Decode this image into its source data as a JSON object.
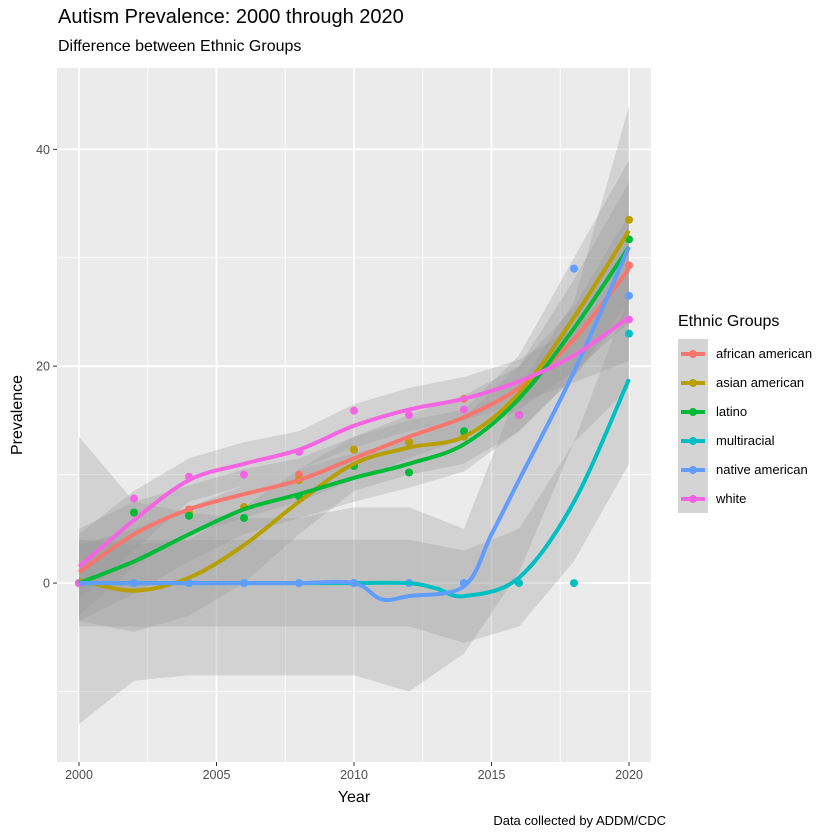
{
  "title": "Autism Prevalence: 2000 through 2020",
  "subtitle": "Difference between Ethnic Groups",
  "caption": "Data collected by ADDM/CDC",
  "chart_data": {
    "type": "scatter",
    "xlabel": "Year",
    "ylabel": "Prevalence",
    "xlim": [
      1999.2,
      2020.8
    ],
    "ylim": [
      -16.5,
      47.5
    ],
    "xticks": [
      2000,
      2005,
      2010,
      2015,
      2020
    ],
    "yticks": [
      0,
      20,
      40
    ],
    "grid": true,
    "legend_title": "Ethnic Groups",
    "legend_position": "right",
    "series": [
      {
        "name": "african american",
        "color": "#F8766D",
        "points": [
          [
            2000,
            0
          ],
          [
            2002,
            6.5
          ],
          [
            2004,
            6.8
          ],
          [
            2006,
            7.0
          ],
          [
            2008,
            10.0
          ],
          [
            2010,
            12.3
          ],
          [
            2012,
            13.0
          ],
          [
            2014,
            17.0
          ],
          [
            2020,
            29.3
          ]
        ],
        "smooth": [
          [
            2000,
            1.0
          ],
          [
            2002,
            4.5
          ],
          [
            2004,
            6.8
          ],
          [
            2006,
            8.2
          ],
          [
            2008,
            9.5
          ],
          [
            2010,
            11.5
          ],
          [
            2012,
            13.5
          ],
          [
            2014,
            15.3
          ],
          [
            2016,
            18.0
          ],
          [
            2018,
            22.5
          ],
          [
            2020,
            29.0
          ]
        ],
        "band": [
          [
            2000,
            -3.0,
            5.0
          ],
          [
            2002,
            1.5,
            7.5
          ],
          [
            2004,
            4.5,
            9.0
          ],
          [
            2006,
            6.0,
            10.5
          ],
          [
            2008,
            7.5,
            11.5
          ],
          [
            2010,
            9.5,
            13.5
          ],
          [
            2012,
            11.5,
            15.5
          ],
          [
            2014,
            13.3,
            17.3
          ],
          [
            2016,
            16.0,
            20.0
          ],
          [
            2018,
            19.5,
            25.5
          ],
          [
            2020,
            24.0,
            34.0
          ]
        ]
      },
      {
        "name": "asian american",
        "color": "#B79F00",
        "points": [
          [
            2000,
            0
          ],
          [
            2002,
            6.5
          ],
          [
            2004,
            6.5
          ],
          [
            2006,
            7.0
          ],
          [
            2008,
            9.5
          ],
          [
            2010,
            12.3
          ],
          [
            2012,
            13.0
          ],
          [
            2014,
            13.5
          ],
          [
            2016,
            15.5
          ],
          [
            2020,
            33.5
          ]
        ],
        "smooth": [
          [
            2000,
            0.3
          ],
          [
            2002,
            -0.7
          ],
          [
            2004,
            0.5
          ],
          [
            2006,
            3.5
          ],
          [
            2008,
            7.5
          ],
          [
            2010,
            11.0
          ],
          [
            2012,
            12.5
          ],
          [
            2014,
            13.5
          ],
          [
            2016,
            17.5
          ],
          [
            2018,
            24.5
          ],
          [
            2020,
            32.5
          ]
        ],
        "band": [
          [
            2000,
            -3.5,
            4.0
          ],
          [
            2002,
            -4.5,
            3.5
          ],
          [
            2004,
            -3.0,
            4.0
          ],
          [
            2006,
            0.0,
            7.0
          ],
          [
            2008,
            4.5,
            10.5
          ],
          [
            2010,
            8.5,
            13.5
          ],
          [
            2012,
            10.0,
            15.0
          ],
          [
            2014,
            11.0,
            16.0
          ],
          [
            2016,
            14.0,
            21.0
          ],
          [
            2018,
            19.0,
            30.0
          ],
          [
            2020,
            26.0,
            39.0
          ]
        ]
      },
      {
        "name": "latino",
        "color": "#00BA38",
        "points": [
          [
            2000,
            0
          ],
          [
            2002,
            6.5
          ],
          [
            2004,
            6.2
          ],
          [
            2006,
            6.0
          ],
          [
            2008,
            8.0
          ],
          [
            2010,
            10.8
          ],
          [
            2012,
            10.2
          ],
          [
            2014,
            14.0
          ],
          [
            2016,
            15.5
          ],
          [
            2020,
            31.7
          ]
        ],
        "smooth": [
          [
            2000,
            0.0
          ],
          [
            2002,
            2.0
          ],
          [
            2004,
            4.5
          ],
          [
            2006,
            6.8
          ],
          [
            2008,
            8.2
          ],
          [
            2010,
            9.7
          ],
          [
            2012,
            11.0
          ],
          [
            2014,
            12.8
          ],
          [
            2016,
            17.0
          ],
          [
            2018,
            23.5
          ],
          [
            2020,
            31.0
          ]
        ],
        "band": [
          [
            2000,
            -3.5,
            3.5
          ],
          [
            2002,
            -1.0,
            5.0
          ],
          [
            2004,
            2.0,
            7.0
          ],
          [
            2006,
            4.5,
            9.0
          ],
          [
            2008,
            6.0,
            10.5
          ],
          [
            2010,
            7.5,
            12.0
          ],
          [
            2012,
            8.8,
            13.2
          ],
          [
            2014,
            10.3,
            15.3
          ],
          [
            2016,
            14.0,
            20.0
          ],
          [
            2018,
            19.0,
            28.0
          ],
          [
            2020,
            25.0,
            37.0
          ]
        ]
      },
      {
        "name": "multiracial",
        "color": "#00BFC4",
        "points": [
          [
            2000,
            0
          ],
          [
            2002,
            0
          ],
          [
            2004,
            0
          ],
          [
            2006,
            0
          ],
          [
            2008,
            0
          ],
          [
            2010,
            0
          ],
          [
            2012,
            0
          ],
          [
            2014,
            0
          ],
          [
            2016,
            0
          ],
          [
            2018,
            0
          ],
          [
            2020,
            23.0
          ]
        ],
        "smooth": [
          [
            2000,
            0.0
          ],
          [
            2002,
            0.0
          ],
          [
            2004,
            0.0
          ],
          [
            2006,
            0.0
          ],
          [
            2008,
            0.0
          ],
          [
            2010,
            0.0
          ],
          [
            2012,
            0.0
          ],
          [
            2013,
            -0.5
          ],
          [
            2014,
            -1.2
          ],
          [
            2016,
            0.5
          ],
          [
            2018,
            7.5
          ],
          [
            2020,
            18.8
          ]
        ],
        "band": [
          [
            2000,
            -4.0,
            4.0
          ],
          [
            2002,
            -4.0,
            4.0
          ],
          [
            2004,
            -4.0,
            4.0
          ],
          [
            2006,
            -4.0,
            4.0
          ],
          [
            2008,
            -4.0,
            4.0
          ],
          [
            2010,
            -4.0,
            4.0
          ],
          [
            2012,
            -4.0,
            4.0
          ],
          [
            2014,
            -5.5,
            3.0
          ],
          [
            2016,
            -4.0,
            5.0
          ],
          [
            2018,
            2.0,
            13.0
          ],
          [
            2020,
            11.0,
            26.5
          ]
        ]
      },
      {
        "name": "native american",
        "color": "#619CFF",
        "points": [
          [
            2000,
            0
          ],
          [
            2002,
            0
          ],
          [
            2004,
            0
          ],
          [
            2006,
            0
          ],
          [
            2008,
            0
          ],
          [
            2010,
            0
          ],
          [
            2012,
            0
          ],
          [
            2014,
            0
          ],
          [
            2018,
            29.0
          ],
          [
            2020,
            26.5
          ]
        ],
        "smooth": [
          [
            2000,
            0.0
          ],
          [
            2002,
            0.0
          ],
          [
            2004,
            0.0
          ],
          [
            2006,
            0.0
          ],
          [
            2008,
            0.0
          ],
          [
            2010,
            0.0
          ],
          [
            2011,
            -1.5
          ],
          [
            2012,
            -1.2
          ],
          [
            2014,
            -0.3
          ],
          [
            2015,
            4.5
          ],
          [
            2016,
            9.5
          ],
          [
            2018,
            19.5
          ],
          [
            2020,
            31.0
          ]
        ],
        "band": [
          [
            2000,
            -13.0,
            13.5
          ],
          [
            2002,
            -9.0,
            7.5
          ],
          [
            2004,
            -8.5,
            6.5
          ],
          [
            2006,
            -8.5,
            6.0
          ],
          [
            2008,
            -8.5,
            6.0
          ],
          [
            2010,
            -8.5,
            7.0
          ],
          [
            2012,
            -10.0,
            7.0
          ],
          [
            2014,
            -6.5,
            5.0
          ],
          [
            2016,
            1.0,
            18.0
          ],
          [
            2018,
            13.0,
            26.0
          ],
          [
            2020,
            18.0,
            44.0
          ]
        ]
      },
      {
        "name": "white",
        "color": "#F564E3",
        "points": [
          [
            2000,
            0
          ],
          [
            2002,
            7.8
          ],
          [
            2004,
            9.8
          ],
          [
            2006,
            10.0
          ],
          [
            2008,
            12.1
          ],
          [
            2010,
            15.9
          ],
          [
            2012,
            15.5
          ],
          [
            2014,
            16.0
          ],
          [
            2016,
            15.5
          ],
          [
            2020,
            24.3
          ]
        ],
        "smooth": [
          [
            2000,
            1.5
          ],
          [
            2002,
            5.8
          ],
          [
            2004,
            9.5
          ],
          [
            2006,
            11.0
          ],
          [
            2008,
            12.3
          ],
          [
            2010,
            14.5
          ],
          [
            2012,
            16.0
          ],
          [
            2014,
            17.0
          ],
          [
            2016,
            18.6
          ],
          [
            2018,
            21.0
          ],
          [
            2020,
            24.5
          ]
        ],
        "band": [
          [
            2000,
            -1.5,
            4.5
          ],
          [
            2002,
            3.0,
            8.5
          ],
          [
            2004,
            7.5,
            11.5
          ],
          [
            2006,
            9.0,
            13.0
          ],
          [
            2008,
            10.5,
            14.0
          ],
          [
            2010,
            12.5,
            16.5
          ],
          [
            2012,
            14.0,
            18.0
          ],
          [
            2014,
            15.0,
            19.0
          ],
          [
            2016,
            16.6,
            20.6
          ],
          [
            2018,
            18.5,
            23.5
          ],
          [
            2020,
            20.5,
            28.5
          ]
        ]
      }
    ]
  }
}
